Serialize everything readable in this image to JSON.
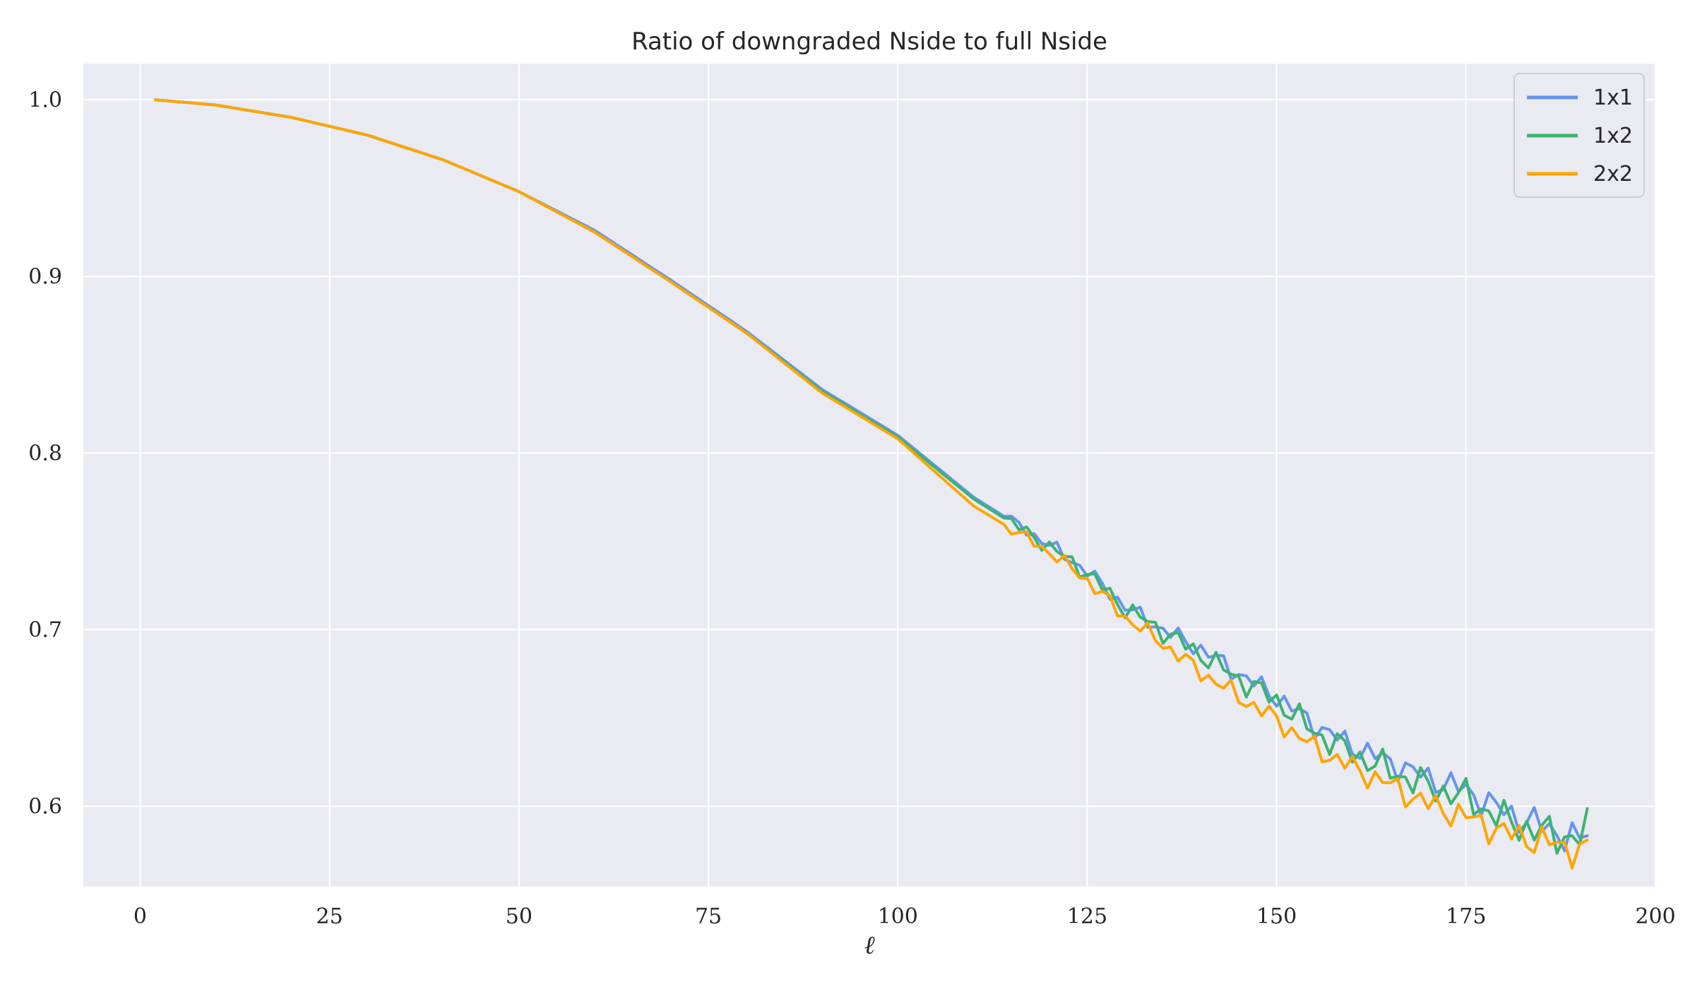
{
  "chart_data": {
    "type": "line",
    "title": "Ratio of downgraded Nside to full Nside",
    "xlabel": "ℓ",
    "ylabel": "",
    "xlim": [
      -7.5,
      200
    ],
    "ylim": [
      0.5545,
      1.0205
    ],
    "x_ticks": [
      0,
      25,
      50,
      75,
      100,
      125,
      150,
      175,
      200
    ],
    "x_tick_labels": [
      "0",
      "25",
      "50",
      "75",
      "100",
      "125",
      "150",
      "175",
      "200"
    ],
    "y_ticks": [
      0.6,
      0.7,
      0.8,
      0.9,
      1.0
    ],
    "y_tick_labels": [
      "0.6",
      "0.7",
      "0.8",
      "0.9",
      "1.0"
    ],
    "grid": true,
    "legend_position": "top-right",
    "x": [
      2,
      10,
      20,
      30,
      40,
      50,
      60,
      70,
      80,
      90,
      100,
      110,
      120,
      125,
      130,
      135,
      140,
      145,
      150,
      155,
      160,
      165,
      170,
      175,
      180,
      185,
      190,
      191
    ],
    "series": [
      {
        "name": "1x1",
        "color": "#6495ED",
        "values": [
          1.0,
          0.997,
          0.99,
          0.98,
          0.966,
          0.948,
          0.926,
          0.898,
          0.869,
          0.836,
          0.81,
          0.775,
          0.748,
          0.733,
          0.713,
          0.7,
          0.689,
          0.675,
          0.662,
          0.646,
          0.634,
          0.625,
          0.616,
          0.609,
          0.597,
          0.589,
          0.58,
          0.586
        ],
        "noise_amplitude": 0.0025,
        "noise_start": 115
      },
      {
        "name": "1x2",
        "color": "#3CB371",
        "values": [
          1.0,
          0.997,
          0.99,
          0.98,
          0.966,
          0.948,
          0.925,
          0.897,
          0.868,
          0.835,
          0.809,
          0.774,
          0.747,
          0.732,
          0.712,
          0.699,
          0.686,
          0.672,
          0.66,
          0.642,
          0.63,
          0.62,
          0.611,
          0.605,
          0.592,
          0.585,
          0.582,
          0.586
        ],
        "noise_amplitude": 0.003,
        "noise_start": 115
      },
      {
        "name": "2x2",
        "color": "#FFA500",
        "values": [
          1.0,
          0.997,
          0.99,
          0.98,
          0.966,
          0.948,
          0.925,
          0.897,
          0.868,
          0.834,
          0.808,
          0.77,
          0.744,
          0.728,
          0.707,
          0.692,
          0.676,
          0.662,
          0.649,
          0.633,
          0.622,
          0.612,
          0.601,
          0.594,
          0.585,
          0.58,
          0.575,
          0.575
        ],
        "noise_amplitude": 0.0025,
        "noise_start": 115
      }
    ]
  }
}
